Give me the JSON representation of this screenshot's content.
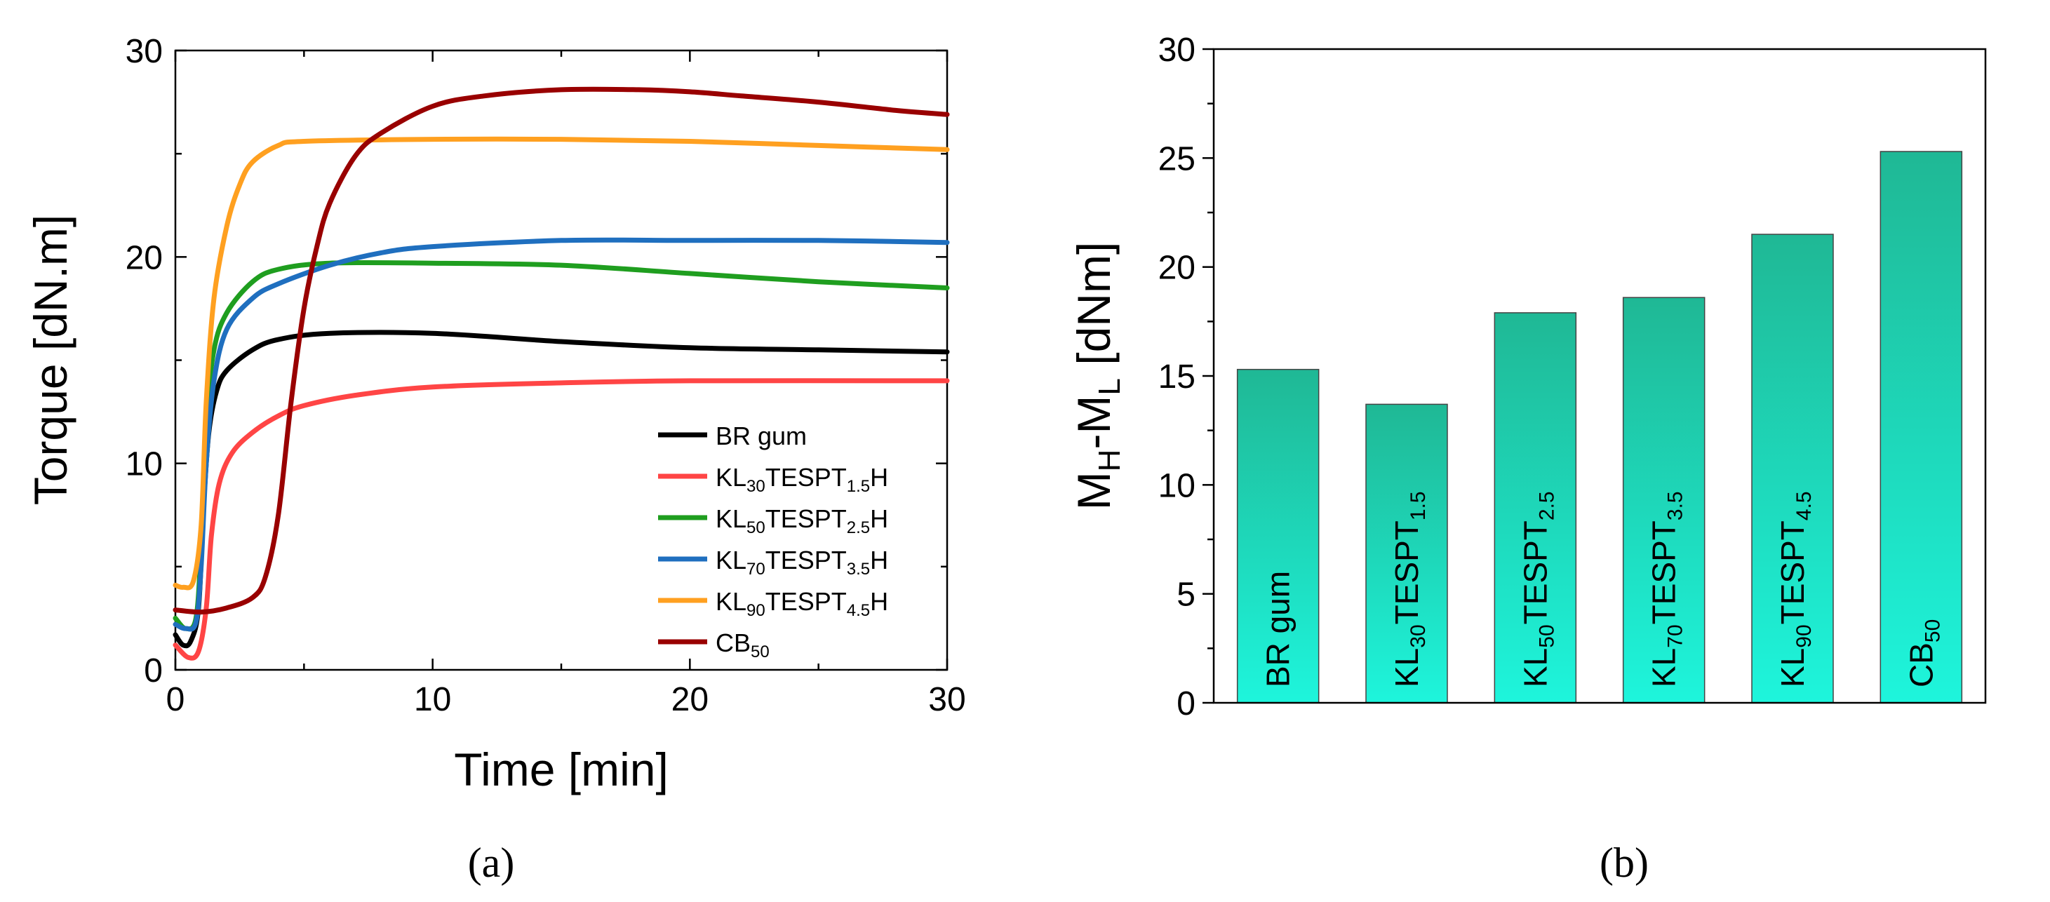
{
  "figure": {
    "panel_a_label": "(a)",
    "panel_b_label": "(b)"
  },
  "colors": {
    "BR_gum": "#000000",
    "KL30": "#ff4545",
    "KL50": "#1f9e1f",
    "KL70": "#1f6fbf",
    "KL90": "#ffa020",
    "CB50": "#990000",
    "bar_top": "#1fb895",
    "bar_bottom": "#1ef5dc"
  },
  "chart_data": [
    {
      "type": "line",
      "panel": "a",
      "xlabel": "Time [min]",
      "ylabel": "Torque [dN.m]",
      "xlim": [
        0,
        30
      ],
      "ylim": [
        0,
        30
      ],
      "xticks": [
        0,
        10,
        20,
        30
      ],
      "yticks": [
        0,
        10,
        20,
        30
      ],
      "legend_position": "bottom-right",
      "series": [
        {
          "name": "BR gum",
          "label_main": "BR gum",
          "color_key": "BR_gum",
          "points": [
            [
              0,
              1.7
            ],
            [
              0.3,
              1.2
            ],
            [
              0.6,
              1.4
            ],
            [
              0.9,
              3
            ],
            [
              1.1,
              8
            ],
            [
              1.3,
              11.5
            ],
            [
              1.6,
              13.5
            ],
            [
              2,
              14.5
            ],
            [
              3,
              15.5
            ],
            [
              4,
              16
            ],
            [
              6,
              16.3
            ],
            [
              10,
              16.3
            ],
            [
              15,
              15.9
            ],
            [
              20,
              15.6
            ],
            [
              25,
              15.5
            ],
            [
              30,
              15.4
            ]
          ]
        },
        {
          "name": "KL30TESPT1.5H",
          "label_pre": "KL",
          "label_sub1": "30",
          "label_mid": "TESPT",
          "label_sub2": "1.5",
          "label_post": "H",
          "color_key": "KL30",
          "points": [
            [
              0,
              1.2
            ],
            [
              0.5,
              0.6
            ],
            [
              0.9,
              0.9
            ],
            [
              1.2,
              3
            ],
            [
              1.4,
              6.5
            ],
            [
              1.7,
              9
            ],
            [
              2.2,
              10.5
            ],
            [
              3,
              11.5
            ],
            [
              4,
              12.3
            ],
            [
              5,
              12.8
            ],
            [
              7,
              13.3
            ],
            [
              10,
              13.7
            ],
            [
              15,
              13.9
            ],
            [
              20,
              14
            ],
            [
              30,
              14
            ]
          ]
        },
        {
          "name": "KL50TESPT2.5H",
          "label_pre": "KL",
          "label_sub1": "50",
          "label_mid": "TESPT",
          "label_sub2": "2.5",
          "label_post": "H",
          "color_key": "KL50",
          "points": [
            [
              0,
              2.5
            ],
            [
              0.4,
              2
            ],
            [
              0.8,
              2.5
            ],
            [
              1,
              6
            ],
            [
              1.2,
              12
            ],
            [
              1.5,
              15.5
            ],
            [
              2,
              17.3
            ],
            [
              3,
              18.8
            ],
            [
              4,
              19.4
            ],
            [
              6,
              19.7
            ],
            [
              10,
              19.7
            ],
            [
              15,
              19.6
            ],
            [
              20,
              19.2
            ],
            [
              25,
              18.8
            ],
            [
              30,
              18.5
            ]
          ]
        },
        {
          "name": "KL70TESPT3.5H",
          "label_pre": "KL",
          "label_sub1": "70",
          "label_mid": "TESPT",
          "label_sub2": "3.5",
          "label_post": "H",
          "color_key": "KL70",
          "points": [
            [
              0,
              2.2
            ],
            [
              0.4,
              2
            ],
            [
              0.8,
              2.3
            ],
            [
              1,
              5
            ],
            [
              1.2,
              10
            ],
            [
              1.5,
              14
            ],
            [
              2,
              16.5
            ],
            [
              3,
              18
            ],
            [
              4,
              18.7
            ],
            [
              6,
              19.6
            ],
            [
              8,
              20.2
            ],
            [
              10,
              20.5
            ],
            [
              15,
              20.8
            ],
            [
              20,
              20.8
            ],
            [
              25,
              20.8
            ],
            [
              30,
              20.7
            ]
          ]
        },
        {
          "name": "KL90TESPT4.5H",
          "label_pre": "KL",
          "label_sub1": "90",
          "label_mid": "TESPT",
          "label_sub2": "4.5",
          "label_post": "H",
          "color_key": "KL90",
          "points": [
            [
              0,
              4.1
            ],
            [
              0.3,
              4
            ],
            [
              0.7,
              4.3
            ],
            [
              1,
              7
            ],
            [
              1.2,
              13
            ],
            [
              1.5,
              18
            ],
            [
              2,
              21.5
            ],
            [
              2.5,
              23.5
            ],
            [
              3,
              24.6
            ],
            [
              4,
              25.4
            ],
            [
              5,
              25.6
            ],
            [
              10,
              25.7
            ],
            [
              15,
              25.7
            ],
            [
              20,
              25.6
            ],
            [
              25,
              25.4
            ],
            [
              30,
              25.2
            ]
          ]
        },
        {
          "name": "CB50",
          "label_pre": "CB",
          "label_sub1": "50",
          "color_key": "CB50",
          "points": [
            [
              0,
              2.9
            ],
            [
              1,
              2.8
            ],
            [
              2,
              3
            ],
            [
              3,
              3.5
            ],
            [
              3.5,
              4.5
            ],
            [
              4,
              7.5
            ],
            [
              4.5,
              13
            ],
            [
              5,
              17.5
            ],
            [
              5.5,
              20.5
            ],
            [
              6,
              22.6
            ],
            [
              7,
              24.9
            ],
            [
              8,
              26
            ],
            [
              10,
              27.3
            ],
            [
              12,
              27.8
            ],
            [
              15,
              28.1
            ],
            [
              18,
              28.1
            ],
            [
              20,
              28
            ],
            [
              22,
              27.8
            ],
            [
              25,
              27.5
            ],
            [
              28,
              27.1
            ],
            [
              30,
              26.9
            ]
          ]
        }
      ]
    },
    {
      "type": "bar",
      "panel": "b",
      "ylabel": "MH-ML [dNm]",
      "ylabel_parts": {
        "main1": "M",
        "sub1": "H",
        "main2": "-M",
        "sub2": "L",
        "rest": " [dNm]"
      },
      "ylim": [
        0,
        30
      ],
      "yticks": [
        0,
        5,
        10,
        15,
        20,
        25,
        30
      ],
      "bars": [
        {
          "category": "BR gum",
          "label_pre": "BR gum",
          "value": 15.3
        },
        {
          "category": "KL30TESPT1.5",
          "label_pre": "KL",
          "label_sub1": "30",
          "label_mid": "TESPT",
          "label_sub2": "1.5",
          "value": 13.7
        },
        {
          "category": "KL50TESPT2.5",
          "label_pre": "KL",
          "label_sub1": "50",
          "label_mid": "TESPT",
          "label_sub2": "2.5",
          "value": 17.9
        },
        {
          "category": "KL70TESPT3.5",
          "label_pre": "KL",
          "label_sub1": "70",
          "label_mid": "TESPT",
          "label_sub2": "3.5",
          "value": 18.6
        },
        {
          "category": "KL90TESPT4.5",
          "label_pre": "KL",
          "label_sub1": "90",
          "label_mid": "TESPT",
          "label_sub2": "4.5",
          "value": 21.5
        },
        {
          "category": "CB50",
          "label_pre": "CB",
          "label_sub1": "50",
          "value": 25.3
        }
      ]
    }
  ]
}
